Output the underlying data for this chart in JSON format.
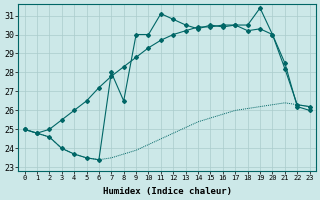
{
  "xlabel": "Humidex (Indice chaleur)",
  "bg_color": "#cce8e8",
  "grid_color": "#aacccc",
  "line_color": "#006666",
  "xlim": [
    -0.5,
    23.5
  ],
  "ylim": [
    22.8,
    31.6
  ],
  "xticks": [
    0,
    1,
    2,
    3,
    4,
    5,
    6,
    7,
    8,
    9,
    10,
    11,
    12,
    13,
    14,
    15,
    16,
    17,
    18,
    19,
    20,
    21,
    22,
    23
  ],
  "yticks": [
    23,
    24,
    25,
    26,
    27,
    28,
    29,
    30,
    31
  ],
  "line1_x": [
    0,
    1,
    2,
    3,
    4,
    5,
    6,
    7,
    8,
    9,
    10,
    11,
    12,
    13,
    14,
    15,
    16,
    17,
    18,
    19,
    20,
    21,
    22,
    23
  ],
  "line1_y": [
    25.0,
    24.8,
    24.6,
    24.0,
    23.7,
    23.5,
    23.4,
    23.5,
    23.7,
    23.9,
    24.2,
    24.5,
    24.8,
    25.1,
    25.4,
    25.6,
    25.8,
    26.0,
    26.1,
    26.2,
    26.3,
    26.4,
    26.3,
    26.2
  ],
  "line2_x": [
    0,
    1,
    2,
    3,
    4,
    5,
    6,
    7,
    8,
    9,
    10,
    11,
    12,
    13,
    14,
    15,
    16,
    17,
    18,
    19,
    20,
    21,
    22,
    23
  ],
  "line2_y": [
    25.0,
    24.8,
    24.6,
    24.0,
    23.7,
    23.5,
    23.4,
    28.0,
    26.5,
    30.0,
    30.0,
    31.1,
    30.8,
    30.5,
    30.3,
    30.5,
    30.4,
    30.5,
    30.2,
    30.3,
    30.0,
    28.5,
    26.2,
    26.0
  ],
  "line3_x": [
    0,
    1,
    2,
    3,
    4,
    5,
    6,
    7,
    8,
    9,
    10,
    11,
    12,
    13,
    14,
    15,
    16,
    17,
    18,
    19,
    20,
    21,
    22,
    23
  ],
  "line3_y": [
    25.0,
    24.8,
    25.0,
    25.5,
    26.0,
    26.5,
    27.2,
    27.8,
    28.3,
    28.8,
    29.3,
    29.7,
    30.0,
    30.2,
    30.4,
    30.4,
    30.5,
    30.5,
    30.5,
    31.4,
    30.0,
    28.2,
    26.3,
    26.2
  ]
}
